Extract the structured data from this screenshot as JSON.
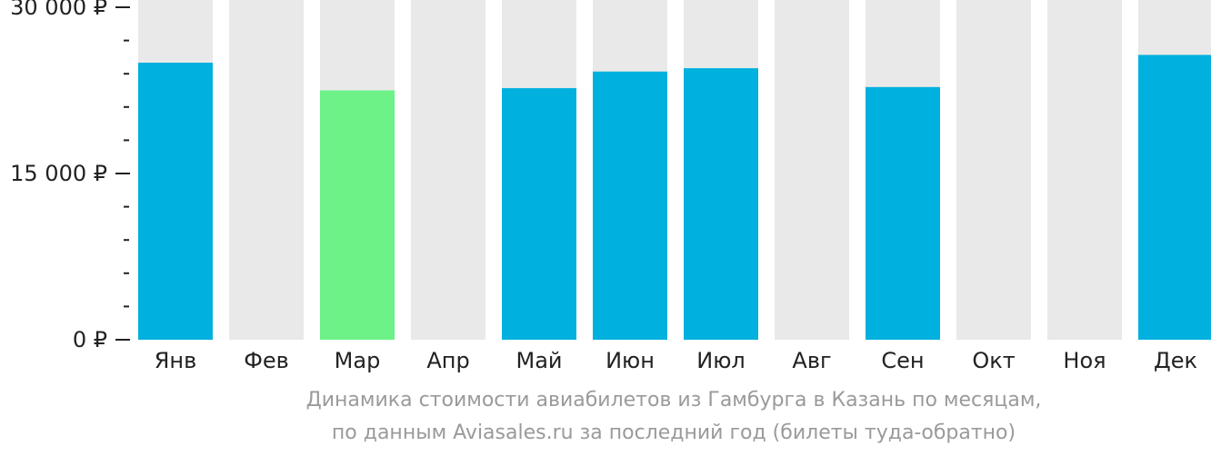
{
  "chart_data": {
    "type": "bar",
    "categories": [
      "Янв",
      "Фев",
      "Мар",
      "Апр",
      "Май",
      "Июн",
      "Июл",
      "Авг",
      "Сен",
      "Окт",
      "Ноя",
      "Дек"
    ],
    "values": [
      25000,
      null,
      22500,
      null,
      22700,
      24200,
      24500,
      null,
      22800,
      null,
      null,
      25700
    ],
    "highlight_index": 2,
    "ylim": [
      0,
      30000
    ],
    "y_ticks": [
      {
        "value": 0,
        "label": "0 ₽"
      },
      {
        "value": 15000,
        "label": "15 000 ₽"
      },
      {
        "value": 30000,
        "label": "30 000 ₽"
      }
    ],
    "minor_tick_step": 3000,
    "caption_line1": "Динамика стоимости авиабилетов из Гамбурга в Казань по месяцам,",
    "caption_line2": "по данным Aviasales.ru за последний год (билеты туда-обратно)",
    "colors": {
      "bar": "#00b0de",
      "highlight": "#6cf286",
      "background_bar": "#e9e9e9",
      "axis": "#222222",
      "caption": "#9a9a9a"
    }
  }
}
